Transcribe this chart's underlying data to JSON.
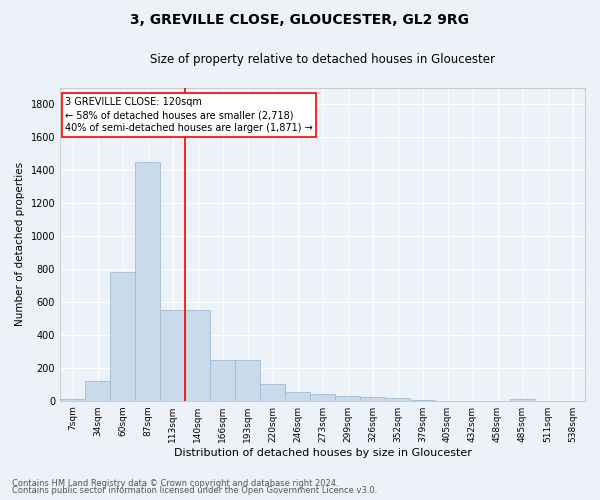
{
  "title": "3, GREVILLE CLOSE, GLOUCESTER, GL2 9RG",
  "subtitle": "Size of property relative to detached houses in Gloucester",
  "xlabel": "Distribution of detached houses by size in Gloucester",
  "ylabel": "Number of detached properties",
  "bar_color": "#c9daea",
  "bar_edge_color": "#a0bcd4",
  "categories": [
    "7sqm",
    "34sqm",
    "60sqm",
    "87sqm",
    "113sqm",
    "140sqm",
    "166sqm",
    "193sqm",
    "220sqm",
    "246sqm",
    "273sqm",
    "299sqm",
    "326sqm",
    "352sqm",
    "379sqm",
    "405sqm",
    "432sqm",
    "458sqm",
    "485sqm",
    "511sqm",
    "538sqm"
  ],
  "values": [
    10,
    120,
    780,
    1450,
    550,
    550,
    245,
    245,
    100,
    50,
    40,
    30,
    20,
    15,
    5,
    0,
    0,
    0,
    10,
    0,
    0
  ],
  "ylim": [
    0,
    1900
  ],
  "yticks": [
    0,
    200,
    400,
    600,
    800,
    1000,
    1200,
    1400,
    1600,
    1800
  ],
  "red_line_x": 4.5,
  "annotation_label": "3 GREVILLE CLOSE: 120sqm",
  "annotation_line1": "← 58% of detached houses are smaller (2,718)",
  "annotation_line2": "40% of semi-detached houses are larger (1,871) →",
  "footnote1": "Contains HM Land Registry data © Crown copyright and database right 2024.",
  "footnote2": "Contains public sector information licensed under the Open Government Licence v3.0.",
  "bg_color": "#edf2f8",
  "plot_bg_color": "#edf2f8",
  "grid_color": "#ffffff",
  "title_fontsize": 10,
  "subtitle_fontsize": 8.5,
  "ylabel_fontsize": 7.5,
  "xlabel_fontsize": 8,
  "tick_fontsize": 6.5,
  "ytick_fontsize": 7,
  "footnote_fontsize": 6,
  "annot_fontsize": 7
}
